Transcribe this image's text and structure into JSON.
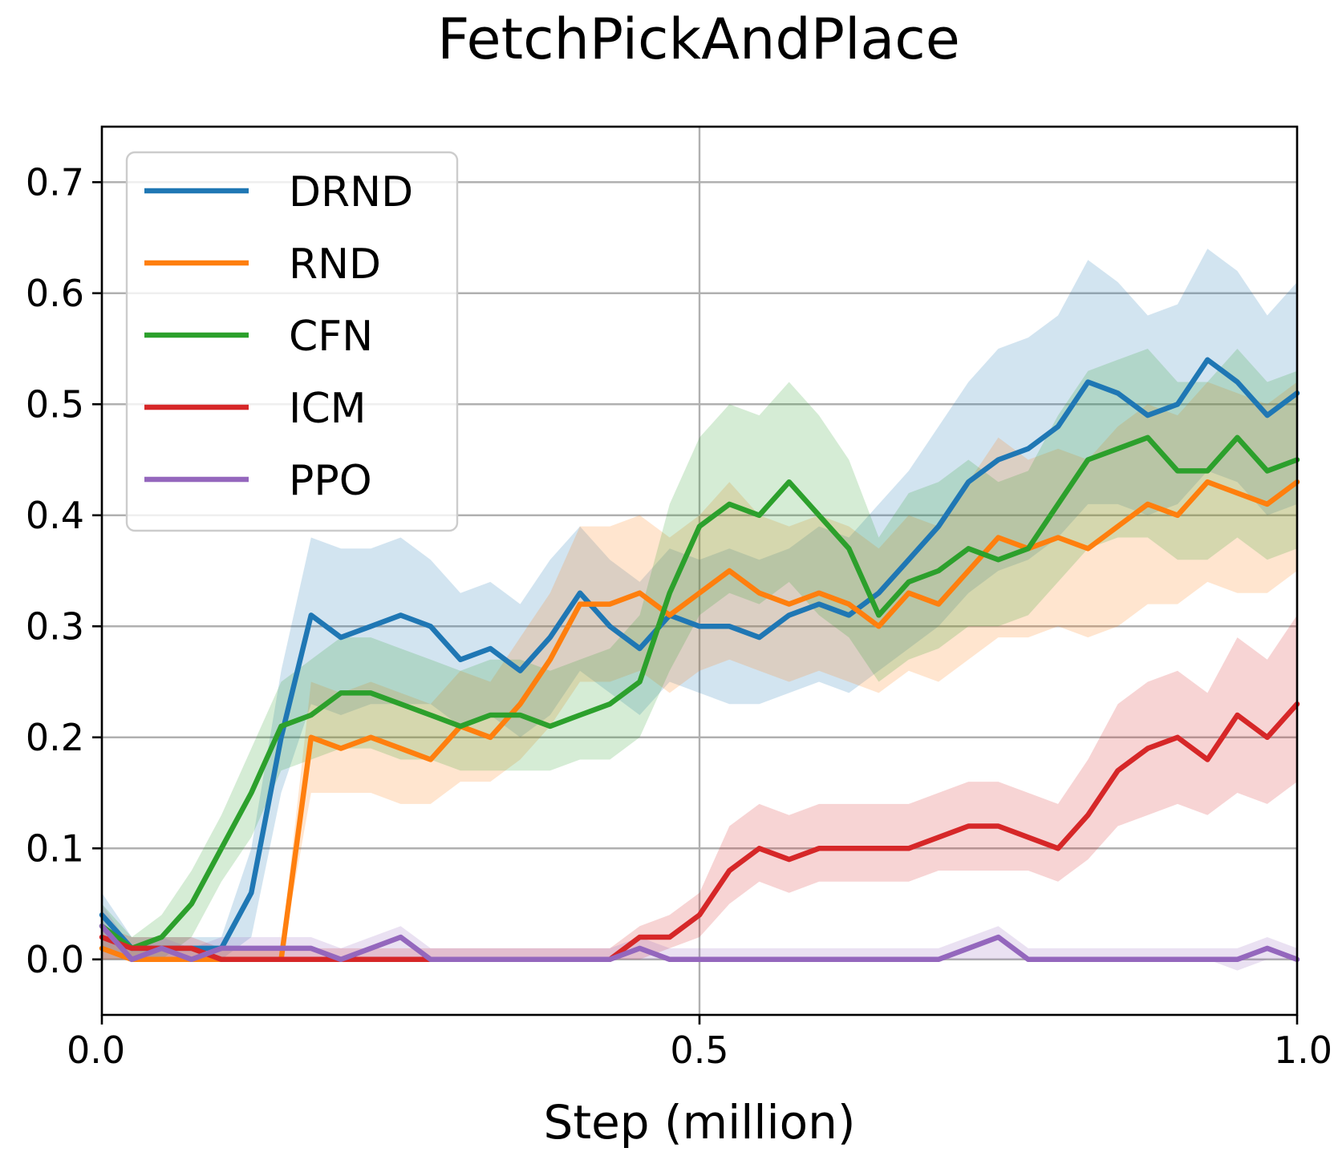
{
  "chart_data": {
    "type": "line",
    "title": "FetchPickAndPlace",
    "xlabel": "Step (million)",
    "ylabel": "",
    "xlim": [
      0.0,
      1.0
    ],
    "ylim": [
      -0.05,
      0.75
    ],
    "xticks": [
      0.0,
      0.5,
      1.0
    ],
    "xtick_labels": [
      "0.0",
      "0.5",
      "1.0"
    ],
    "yticks": [
      0.0,
      0.1,
      0.2,
      0.3,
      0.4,
      0.5,
      0.6,
      0.7
    ],
    "ytick_labels": [
      "0.0",
      "0.1",
      "0.2",
      "0.3",
      "0.4",
      "0.5",
      "0.6",
      "0.7"
    ],
    "grid": true,
    "legend_position": "top-left",
    "x": [
      0.0,
      0.025,
      0.05,
      0.075,
      0.1,
      0.125,
      0.15,
      0.175,
      0.2,
      0.225,
      0.25,
      0.275,
      0.3,
      0.325,
      0.35,
      0.375,
      0.4,
      0.425,
      0.45,
      0.475,
      0.5,
      0.525,
      0.55,
      0.575,
      0.6,
      0.625,
      0.65,
      0.675,
      0.7,
      0.725,
      0.75,
      0.775,
      0.8,
      0.825,
      0.85,
      0.875,
      0.9,
      0.925,
      0.95,
      0.975,
      1.0
    ],
    "series": [
      {
        "name": "DRND",
        "color": "#1f77b4",
        "values": [
          0.04,
          0.01,
          0.01,
          0.01,
          0.01,
          0.06,
          0.2,
          0.31,
          0.29,
          0.3,
          0.31,
          0.3,
          0.27,
          0.28,
          0.26,
          0.29,
          0.33,
          0.3,
          0.28,
          0.31,
          0.3,
          0.3,
          0.29,
          0.31,
          0.32,
          0.31,
          0.33,
          0.36,
          0.39,
          0.43,
          0.45,
          0.46,
          0.48,
          0.52,
          0.51,
          0.49,
          0.5,
          0.54,
          0.52,
          0.49,
          0.51
        ],
        "lower": [
          0.01,
          0.0,
          0.0,
          0.0,
          0.0,
          0.02,
          0.15,
          0.23,
          0.22,
          0.23,
          0.23,
          0.23,
          0.21,
          0.22,
          0.2,
          0.22,
          0.26,
          0.24,
          0.22,
          0.25,
          0.24,
          0.23,
          0.23,
          0.24,
          0.25,
          0.24,
          0.26,
          0.28,
          0.3,
          0.33,
          0.35,
          0.36,
          0.38,
          0.41,
          0.41,
          0.4,
          0.41,
          0.44,
          0.43,
          0.4,
          0.41
        ],
        "upper": [
          0.06,
          0.02,
          0.02,
          0.02,
          0.02,
          0.1,
          0.26,
          0.38,
          0.37,
          0.37,
          0.38,
          0.36,
          0.33,
          0.34,
          0.32,
          0.36,
          0.39,
          0.36,
          0.34,
          0.37,
          0.36,
          0.37,
          0.36,
          0.37,
          0.39,
          0.38,
          0.41,
          0.44,
          0.48,
          0.52,
          0.55,
          0.56,
          0.58,
          0.63,
          0.61,
          0.58,
          0.59,
          0.64,
          0.62,
          0.58,
          0.61
        ]
      },
      {
        "name": "RND",
        "color": "#ff7f0e",
        "values": [
          0.01,
          0.0,
          0.0,
          0.0,
          0.0,
          0.0,
          0.0,
          0.2,
          0.19,
          0.2,
          0.19,
          0.18,
          0.21,
          0.2,
          0.23,
          0.27,
          0.32,
          0.32,
          0.33,
          0.31,
          0.33,
          0.35,
          0.33,
          0.32,
          0.33,
          0.32,
          0.3,
          0.33,
          0.32,
          0.35,
          0.38,
          0.37,
          0.38,
          0.37,
          0.39,
          0.41,
          0.4,
          0.43,
          0.42,
          0.41,
          0.43
        ],
        "lower": [
          0.0,
          0.0,
          0.0,
          0.0,
          0.0,
          0.0,
          0.0,
          0.15,
          0.15,
          0.15,
          0.14,
          0.14,
          0.16,
          0.16,
          0.18,
          0.21,
          0.25,
          0.25,
          0.26,
          0.24,
          0.26,
          0.27,
          0.26,
          0.25,
          0.26,
          0.25,
          0.24,
          0.26,
          0.25,
          0.27,
          0.29,
          0.29,
          0.3,
          0.29,
          0.3,
          0.32,
          0.32,
          0.34,
          0.33,
          0.33,
          0.35
        ],
        "upper": [
          0.02,
          0.01,
          0.01,
          0.01,
          0.01,
          0.01,
          0.01,
          0.25,
          0.24,
          0.25,
          0.24,
          0.23,
          0.26,
          0.25,
          0.29,
          0.33,
          0.39,
          0.39,
          0.4,
          0.38,
          0.4,
          0.43,
          0.4,
          0.39,
          0.4,
          0.39,
          0.37,
          0.4,
          0.39,
          0.43,
          0.47,
          0.45,
          0.46,
          0.45,
          0.48,
          0.5,
          0.49,
          0.52,
          0.51,
          0.5,
          0.52
        ]
      },
      {
        "name": "CFN",
        "color": "#2ca02c",
        "values": [
          0.03,
          0.01,
          0.02,
          0.05,
          0.1,
          0.15,
          0.21,
          0.22,
          0.24,
          0.24,
          0.23,
          0.22,
          0.21,
          0.22,
          0.22,
          0.21,
          0.22,
          0.23,
          0.25,
          0.33,
          0.39,
          0.41,
          0.4,
          0.43,
          0.4,
          0.37,
          0.31,
          0.34,
          0.35,
          0.37,
          0.36,
          0.37,
          0.41,
          0.45,
          0.46,
          0.47,
          0.44,
          0.44,
          0.47,
          0.44,
          0.45
        ],
        "lower": [
          0.0,
          0.0,
          0.0,
          0.02,
          0.07,
          0.11,
          0.17,
          0.18,
          0.19,
          0.19,
          0.18,
          0.18,
          0.17,
          0.17,
          0.17,
          0.17,
          0.18,
          0.18,
          0.2,
          0.26,
          0.31,
          0.33,
          0.32,
          0.34,
          0.31,
          0.29,
          0.25,
          0.27,
          0.28,
          0.3,
          0.3,
          0.31,
          0.34,
          0.37,
          0.38,
          0.38,
          0.36,
          0.36,
          0.38,
          0.36,
          0.37
        ],
        "upper": [
          0.05,
          0.02,
          0.04,
          0.08,
          0.13,
          0.19,
          0.25,
          0.27,
          0.29,
          0.29,
          0.28,
          0.27,
          0.26,
          0.27,
          0.27,
          0.26,
          0.27,
          0.28,
          0.31,
          0.41,
          0.47,
          0.5,
          0.49,
          0.52,
          0.49,
          0.45,
          0.38,
          0.42,
          0.43,
          0.45,
          0.43,
          0.44,
          0.49,
          0.53,
          0.54,
          0.55,
          0.52,
          0.52,
          0.55,
          0.52,
          0.53
        ]
      },
      {
        "name": "ICM",
        "color": "#d62728",
        "values": [
          0.02,
          0.01,
          0.01,
          0.01,
          0.0,
          0.0,
          0.0,
          0.0,
          0.0,
          0.0,
          0.0,
          0.0,
          0.0,
          0.0,
          0.0,
          0.0,
          0.0,
          0.0,
          0.02,
          0.02,
          0.04,
          0.08,
          0.1,
          0.09,
          0.1,
          0.1,
          0.1,
          0.1,
          0.11,
          0.12,
          0.12,
          0.11,
          0.1,
          0.13,
          0.17,
          0.19,
          0.2,
          0.18,
          0.22,
          0.2,
          0.23
        ],
        "lower": [
          0.0,
          0.0,
          0.0,
          0.0,
          0.0,
          0.0,
          0.0,
          0.0,
          0.0,
          0.0,
          0.0,
          0.0,
          0.0,
          0.0,
          0.0,
          0.0,
          0.0,
          0.0,
          0.0,
          0.01,
          0.02,
          0.05,
          0.07,
          0.06,
          0.07,
          0.07,
          0.07,
          0.07,
          0.08,
          0.08,
          0.08,
          0.08,
          0.07,
          0.09,
          0.12,
          0.13,
          0.14,
          0.13,
          0.15,
          0.14,
          0.16
        ],
        "upper": [
          0.03,
          0.02,
          0.02,
          0.02,
          0.01,
          0.01,
          0.01,
          0.01,
          0.01,
          0.01,
          0.01,
          0.01,
          0.01,
          0.01,
          0.01,
          0.01,
          0.01,
          0.01,
          0.03,
          0.04,
          0.06,
          0.12,
          0.14,
          0.13,
          0.14,
          0.14,
          0.14,
          0.14,
          0.15,
          0.16,
          0.16,
          0.15,
          0.14,
          0.18,
          0.23,
          0.25,
          0.26,
          0.24,
          0.29,
          0.27,
          0.31
        ]
      },
      {
        "name": "PPO",
        "color": "#9467bd",
        "values": [
          0.03,
          0.0,
          0.01,
          0.0,
          0.01,
          0.01,
          0.01,
          0.01,
          0.0,
          0.01,
          0.02,
          0.0,
          0.0,
          0.0,
          0.0,
          0.0,
          0.0,
          0.0,
          0.01,
          0.0,
          0.0,
          0.0,
          0.0,
          0.0,
          0.0,
          0.0,
          0.0,
          0.0,
          0.0,
          0.01,
          0.02,
          0.0,
          0.0,
          0.0,
          0.0,
          0.0,
          0.0,
          0.0,
          0.0,
          0.01,
          0.0
        ],
        "lower": [
          0.0,
          0.0,
          0.0,
          0.0,
          0.0,
          0.0,
          0.0,
          0.0,
          0.0,
          0.0,
          0.0,
          0.0,
          0.0,
          0.0,
          0.0,
          0.0,
          0.0,
          0.0,
          0.0,
          0.0,
          0.0,
          0.0,
          0.0,
          0.0,
          0.0,
          0.0,
          0.0,
          0.0,
          0.0,
          0.0,
          0.0,
          0.0,
          0.0,
          0.0,
          0.0,
          0.0,
          0.0,
          0.0,
          -0.01,
          0.0,
          0.0
        ],
        "upper": [
          0.05,
          0.01,
          0.02,
          0.01,
          0.02,
          0.02,
          0.02,
          0.02,
          0.01,
          0.02,
          0.03,
          0.01,
          0.01,
          0.01,
          0.01,
          0.01,
          0.01,
          0.01,
          0.02,
          0.01,
          0.01,
          0.01,
          0.01,
          0.01,
          0.01,
          0.01,
          0.01,
          0.01,
          0.01,
          0.02,
          0.03,
          0.01,
          0.01,
          0.01,
          0.01,
          0.01,
          0.01,
          0.01,
          0.01,
          0.02,
          0.01
        ]
      }
    ]
  }
}
